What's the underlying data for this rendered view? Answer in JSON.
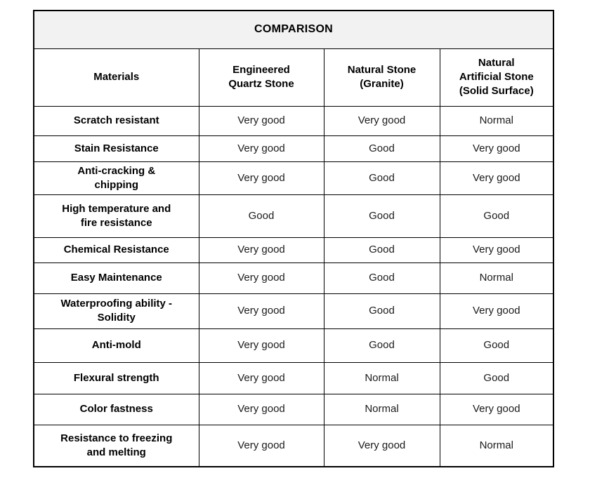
{
  "table": {
    "title": "COMPARISON",
    "columns": [
      {
        "label": "Materials"
      },
      {
        "label": "Engineered\nQuartz Stone"
      },
      {
        "label": "Natural Stone\n(Granite)"
      },
      {
        "label": "Natural\nArtificial Stone\n(Solid Surface)"
      }
    ],
    "rows": [
      {
        "label": "Scratch resistant",
        "values": [
          "Very good",
          "Very good",
          "Normal"
        ]
      },
      {
        "label": "Stain Resistance",
        "values": [
          "Very good",
          "Good",
          "Very good"
        ]
      },
      {
        "label": "Anti-cracking &\nchipping",
        "values": [
          "Very good",
          "Good",
          "Very good"
        ]
      },
      {
        "label": "High temperature and\nfire resistance",
        "values": [
          "Good",
          "Good",
          "Good"
        ]
      },
      {
        "label": "Chemical Resistance",
        "values": [
          "Very good",
          "Good",
          "Very good"
        ]
      },
      {
        "label": "Easy Maintenance",
        "values": [
          "Very good",
          "Good",
          "Normal"
        ]
      },
      {
        "label": "Waterproofing ability -\nSolidity",
        "values": [
          "Very good",
          "Good",
          "Very good"
        ]
      },
      {
        "label": "Anti-mold",
        "values": [
          "Very good",
          "Good",
          "Good"
        ]
      },
      {
        "label": "Flexural strength",
        "values": [
          "Very good",
          "Normal",
          "Good"
        ]
      },
      {
        "label": "Color fastness",
        "values": [
          "Very good",
          "Normal",
          "Very good"
        ]
      },
      {
        "label": "Resistance to freezing\nand melting",
        "values": [
          "Very good",
          "Very good",
          "Normal"
        ]
      }
    ]
  },
  "colors": {
    "title_background": "#f2f2f2",
    "border": "#000000",
    "text": "#000000"
  }
}
